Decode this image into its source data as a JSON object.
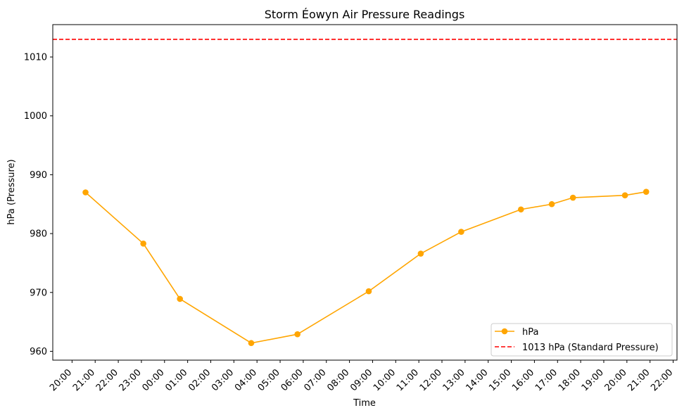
{
  "chart_data": {
    "type": "line",
    "title": "Storm Éowyn Air Pressure Readings",
    "xlabel": "Time",
    "ylabel": "hPa (Pressure)",
    "ylim": [
      958.5,
      1015.5
    ],
    "yticks": [
      960,
      970,
      980,
      990,
      1000,
      1010
    ],
    "xlim": [
      "2025-01-23 19:10",
      "2025-01-24 22:10"
    ],
    "xticks": [
      "20:00",
      "21:00",
      "22:00",
      "23:00",
      "00:00",
      "01:00",
      "02:00",
      "03:00",
      "04:00",
      "05:00",
      "06:00",
      "07:00",
      "08:00",
      "09:00",
      "10:00",
      "11:00",
      "12:00",
      "13:00",
      "14:00",
      "15:00",
      "16:00",
      "17:00",
      "18:00",
      "19:00",
      "20:00",
      "21:00",
      "22:00"
    ],
    "grid": false,
    "legend_position": "lower-right",
    "series": [
      {
        "name": "hPa",
        "color": "#ffa500",
        "marker": "circle",
        "x": [
          "2025-01-23 20:35",
          "2025-01-23 23:05",
          "2025-01-24 00:40",
          "2025-01-24 03:45",
          "2025-01-24 05:45",
          "2025-01-24 08:50",
          "2025-01-24 11:05",
          "2025-01-24 12:50",
          "2025-01-24 15:25",
          "2025-01-24 16:45",
          "2025-01-24 17:40",
          "2025-01-24 19:55",
          "2025-01-24 20:50"
        ],
        "y": [
          987.0,
          978.3,
          968.9,
          961.4,
          962.9,
          970.2,
          976.6,
          980.3,
          984.1,
          985.0,
          986.1,
          986.5,
          987.1
        ]
      }
    ],
    "reference_lines": [
      {
        "name": "1013 hPa (Standard Pressure)",
        "y": 1013,
        "color": "#ff0000",
        "style": "dashed"
      }
    ]
  }
}
